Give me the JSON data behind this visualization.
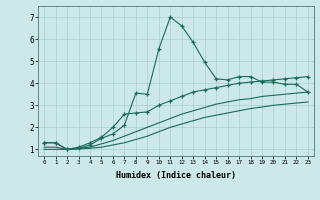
{
  "xlabel": "Humidex (Indice chaleur)",
  "ylabel": "",
  "bg_color": "#cce8e8",
  "line_color": "#1a6b5a",
  "grid_color": "#aacfcf",
  "xlim": [
    -0.5,
    23.5
  ],
  "ylim": [
    0.7,
    7.5
  ],
  "xticks": [
    0,
    1,
    2,
    3,
    4,
    5,
    6,
    7,
    8,
    9,
    10,
    11,
    12,
    13,
    14,
    15,
    16,
    17,
    18,
    19,
    20,
    21,
    22,
    23
  ],
  "yticks": [
    1,
    2,
    3,
    4,
    5,
    6,
    7
  ],
  "lines": [
    {
      "x": [
        0,
        1,
        2,
        3,
        4,
        5,
        6,
        7,
        8,
        9,
        10,
        11,
        12,
        13,
        14,
        15,
        16,
        17,
        18,
        19,
        20,
        21,
        22,
        23
      ],
      "y": [
        1.3,
        1.3,
        1.0,
        1.05,
        1.2,
        1.5,
        1.7,
        2.1,
        3.55,
        3.5,
        5.55,
        7.0,
        6.6,
        5.85,
        4.95,
        4.2,
        4.15,
        4.3,
        4.3,
        4.05,
        4.05,
        3.95,
        3.95,
        3.6
      ],
      "marker": "+"
    },
    {
      "x": [
        0,
        1,
        2,
        3,
        4,
        5,
        6,
        7,
        8,
        9,
        10,
        11,
        12,
        13,
        14,
        15,
        16,
        17,
        18,
        19,
        20,
        21,
        22,
        23
      ],
      "y": [
        1.3,
        1.3,
        1.0,
        1.1,
        1.3,
        1.55,
        2.0,
        2.6,
        2.65,
        2.7,
        3.0,
        3.2,
        3.4,
        3.6,
        3.7,
        3.8,
        3.9,
        4.0,
        4.05,
        4.1,
        4.15,
        4.2,
        4.25,
        4.3
      ],
      "marker": "+"
    },
    {
      "x": [
        0,
        1,
        2,
        3,
        4,
        5,
        6,
        7,
        8,
        9,
        10,
        11,
        12,
        13,
        14,
        15,
        16,
        17,
        18,
        19,
        20,
        21,
        22,
        23
      ],
      "y": [
        1.1,
        1.1,
        1.0,
        1.05,
        1.1,
        1.25,
        1.4,
        1.6,
        1.8,
        2.0,
        2.2,
        2.4,
        2.6,
        2.75,
        2.9,
        3.05,
        3.15,
        3.25,
        3.3,
        3.4,
        3.45,
        3.5,
        3.55,
        3.6
      ],
      "marker": null
    },
    {
      "x": [
        0,
        1,
        2,
        3,
        4,
        5,
        6,
        7,
        8,
        9,
        10,
        11,
        12,
        13,
        14,
        15,
        16,
        17,
        18,
        19,
        20,
        21,
        22,
        23
      ],
      "y": [
        1.0,
        1.0,
        1.0,
        1.02,
        1.05,
        1.1,
        1.2,
        1.3,
        1.45,
        1.6,
        1.8,
        2.0,
        2.15,
        2.3,
        2.45,
        2.55,
        2.65,
        2.75,
        2.85,
        2.92,
        3.0,
        3.05,
        3.1,
        3.15
      ],
      "marker": null
    }
  ]
}
